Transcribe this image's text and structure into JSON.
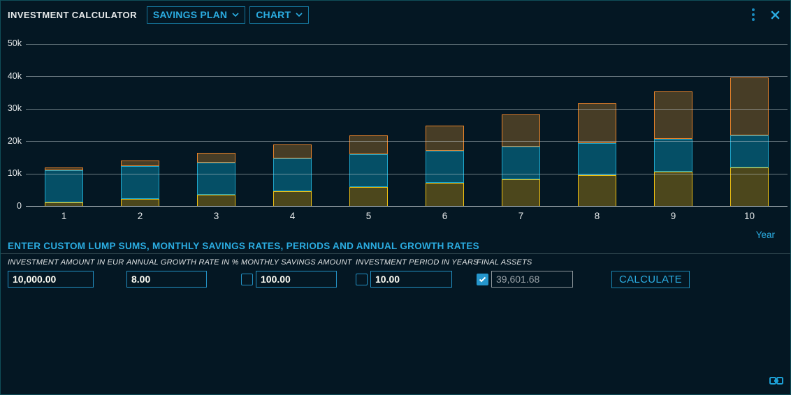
{
  "window": {
    "title": "INVESTMENT CALCULATOR",
    "menus": [
      {
        "label": "SAVINGS PLAN"
      },
      {
        "label": "CHART"
      }
    ],
    "accent_color": "#2bade2"
  },
  "chart_data": {
    "type": "bar",
    "stacked": true,
    "categories": [
      "1",
      "2",
      "3",
      "4",
      "5",
      "6",
      "7",
      "8",
      "9",
      "10"
    ],
    "xlabel": "Year",
    "ylabel": "",
    "ylim": [
      0,
      50000
    ],
    "grid": true,
    "legend": false,
    "yticks": [
      {
        "value": 0,
        "label": "0"
      },
      {
        "value": 10000,
        "label": "10k"
      },
      {
        "value": 20000,
        "label": "20k"
      },
      {
        "value": 30000,
        "label": "30k"
      },
      {
        "value": 40000,
        "label": "40k"
      },
      {
        "value": 50000,
        "label": "50k"
      }
    ],
    "series": [
      {
        "name": "savings-deposits",
        "fill": "#4c471c",
        "border": "#f1c211",
        "values": [
          1200,
          2400,
          3600,
          4800,
          6000,
          7200,
          8400,
          9600,
          10800,
          12000
        ]
      },
      {
        "name": "initial-investment",
        "fill": "#054f66",
        "border": "#1ea7cc",
        "values": [
          10000,
          10000,
          10000,
          10000,
          10000,
          10000,
          10000,
          10000,
          10000,
          10000
        ]
      },
      {
        "name": "growth-interest",
        "fill": "#473d26",
        "border": "#e8832a",
        "values": [
          843,
          1850,
          3034,
          4408,
          5988,
          7790,
          9833,
          12136,
          14719,
          17602
        ]
      }
    ],
    "totals": [
      12043,
      14250,
      16634,
      19208,
      21988,
      24990,
      28233,
      31736,
      35519,
      39602
    ]
  },
  "form": {
    "section_title": "ENTER CUSTOM LUMP SUMS, MONTHLY SAVINGS RATES, PERIODS AND ANNUAL GROWTH RATES",
    "fields": [
      {
        "label": "INVESTMENT AMOUNT IN EUR",
        "value": "10,000.00"
      },
      {
        "label": "ANNUAL GROWTH RATE IN %",
        "value": "8.00"
      },
      {
        "label": "MONTHLY SAVINGS AMOUNT",
        "value": "100.00",
        "checked": false
      },
      {
        "label": "INVESTMENT PERIOD IN YEARS",
        "value": "10.00",
        "checked": false
      },
      {
        "label": "FINAL ASSETS",
        "value": "39,601.68",
        "checked": true,
        "disabled": true
      }
    ],
    "calculate_label": "CALCULATE"
  }
}
